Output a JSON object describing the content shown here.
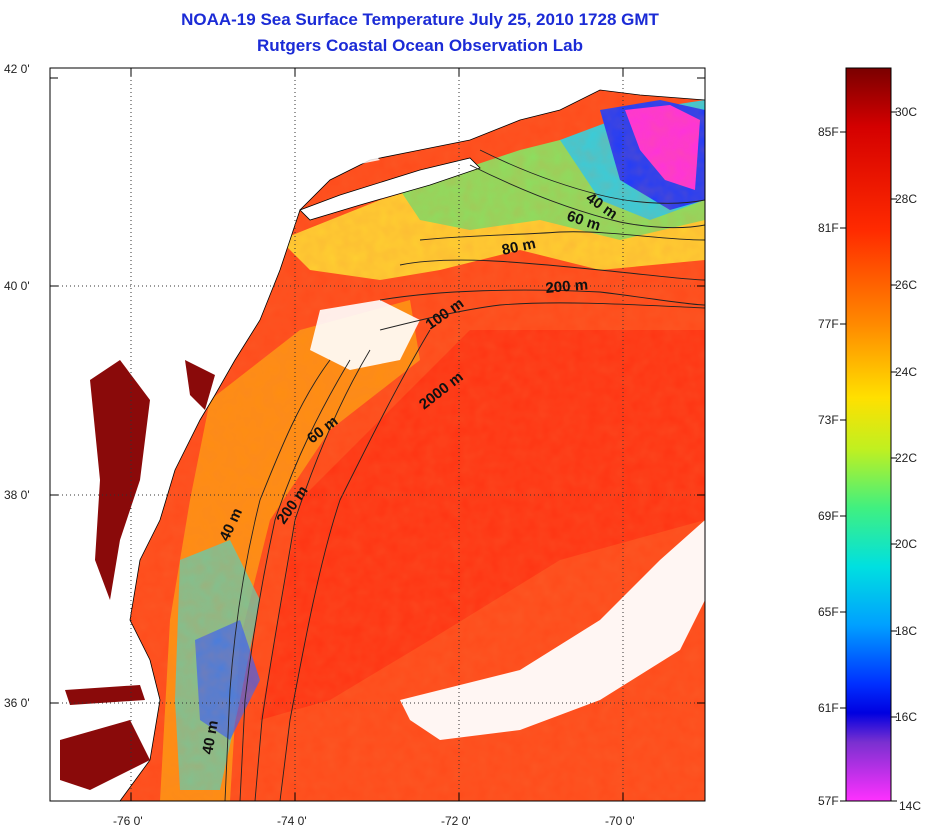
{
  "title": "NOAA-19 Sea Surface Temperature July 25, 2010 1728 GMT",
  "subtitle": "Rutgers Coastal Ocean Observation Lab",
  "lat_ticks": [
    "42 0'",
    "40 0'",
    "38 0'",
    "36 0'"
  ],
  "lon_ticks": [
    "-76 0'",
    "-74 0'",
    "-72 0'",
    "-70 0'"
  ],
  "contour_labels": [
    "40 m",
    "60 m",
    "80 m",
    "200 m",
    "100 m",
    "2000 m",
    "60 m",
    "200 m",
    "40 m",
    "40 m"
  ],
  "colorbar": {
    "fahrenheit": [
      "85F",
      "81F",
      "77F",
      "73F",
      "69F",
      "65F",
      "61F",
      "57F"
    ],
    "celsius": [
      "30C",
      "28C",
      "26C",
      "24C",
      "22C",
      "20C",
      "18C",
      "16C",
      "14C"
    ],
    "colors": [
      "#7a0000",
      "#d40000",
      "#ff2a00",
      "#ff7a00",
      "#ffd000",
      "#e0f000",
      "#70f040",
      "#00e0c0",
      "#00a0ff",
      "#0030ff",
      "#0000e0",
      "#7a30d0",
      "#ff30ff"
    ]
  },
  "map_colors": {
    "ocean_warm": "#ff4a1a",
    "ocean_hot": "#ff2a10",
    "shelf_orange": "#ff9a10",
    "shelf_yellow": "#ffe030",
    "cool_green": "#7ae060",
    "cool_cyan": "#30e0d0",
    "cold_blue": "#1a3aff",
    "cold_magenta": "#ff30e0",
    "bay_dark": "#8a0a0a",
    "land": "#ffffff",
    "cloud": "#ffffff"
  }
}
